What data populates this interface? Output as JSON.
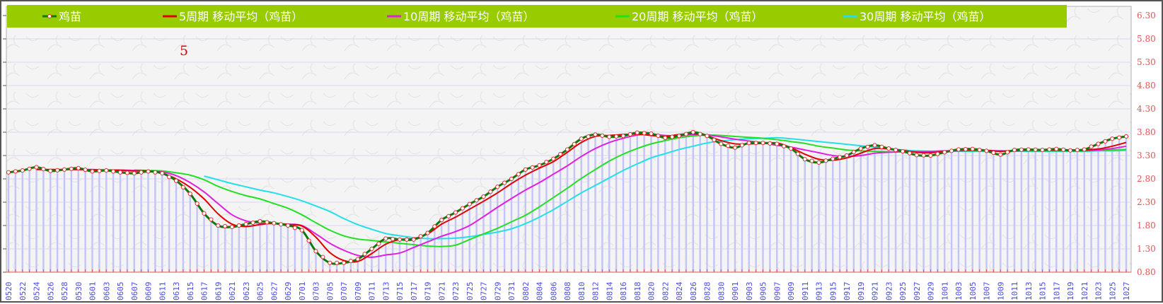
{
  "chart_data": {
    "type": "line",
    "title": "",
    "annotation": "5",
    "xlabel": "",
    "ylabel": "",
    "ylim": [
      0.8,
      6.3
    ],
    "y_ticks": [
      "6.30",
      "5.80",
      "5.30",
      "4.80",
      "4.30",
      "3.80",
      "3.30",
      "2.80",
      "2.30",
      "1.80",
      "1.30",
      "0.80"
    ],
    "y_axis_side": "right",
    "grid": true,
    "legend_position": "top",
    "x": [
      "0520",
      "0522",
      "0524",
      "0526",
      "0528",
      "0530",
      "0601",
      "0603",
      "0605",
      "0607",
      "0609",
      "0611",
      "0613",
      "0615",
      "0617",
      "0619",
      "0621",
      "0623",
      "0625",
      "0627",
      "0629",
      "0701",
      "0703",
      "0705",
      "0707",
      "0709",
      "0711",
      "0713",
      "0715",
      "0717",
      "0719",
      "0721",
      "0723",
      "0725",
      "0727",
      "0729",
      "0731",
      "0802",
      "0804",
      "0806",
      "0808",
      "0810",
      "0812",
      "0814",
      "0816",
      "0818",
      "0820",
      "0822",
      "0824",
      "0826",
      "0828",
      "0830",
      "0901",
      "0903",
      "0905",
      "0907",
      "0909",
      "0911",
      "0913",
      "0915",
      "0917",
      "0919",
      "0921",
      "0923",
      "0925",
      "0927",
      "0929",
      "1001",
      "1003",
      "1005",
      "1007",
      "1009",
      "1011",
      "1013",
      "1015",
      "1017",
      "1019",
      "1021",
      "1023",
      "1025",
      "1027"
    ],
    "series": [
      {
        "name": "鸡苗",
        "color": "#0a7a0a",
        "marker_color": "#e03030",
        "values": [
          2.94,
          2.98,
          3.05,
          2.97,
          3.0,
          3.03,
          2.96,
          2.98,
          2.94,
          2.92,
          2.96,
          2.92,
          2.76,
          2.48,
          2.06,
          1.8,
          1.77,
          1.83,
          1.89,
          1.85,
          1.8,
          1.7,
          1.25,
          1.0,
          1.0,
          1.08,
          1.3,
          1.52,
          1.5,
          1.5,
          1.64,
          1.92,
          2.08,
          2.26,
          2.42,
          2.63,
          2.8,
          3.0,
          3.09,
          3.23,
          3.43,
          3.66,
          3.75,
          3.7,
          3.72,
          3.79,
          3.77,
          3.68,
          3.72,
          3.8,
          3.72,
          3.55,
          3.47,
          3.57,
          3.57,
          3.55,
          3.45,
          3.22,
          3.15,
          3.23,
          3.3,
          3.45,
          3.52,
          3.45,
          3.39,
          3.31,
          3.3,
          3.37,
          3.43,
          3.44,
          3.4,
          3.32,
          3.42,
          3.43,
          3.42,
          3.44,
          3.41,
          3.43,
          3.55,
          3.66,
          3.71
        ]
      },
      {
        "name": "5周期 移动平均（鸡苗）",
        "color": "#e00000",
        "values": [
          null,
          null,
          3.0,
          3.0,
          3.0,
          3.0,
          2.99,
          2.99,
          2.98,
          2.97,
          2.97,
          2.92,
          2.8,
          2.62,
          2.37,
          2.05,
          1.83,
          1.78,
          1.82,
          1.85,
          1.82,
          1.79,
          1.55,
          1.22,
          1.05,
          1.03,
          1.2,
          1.4,
          1.5,
          1.52,
          1.62,
          1.83,
          1.98,
          2.15,
          2.32,
          2.5,
          2.7,
          2.88,
          3.03,
          3.17,
          3.37,
          3.58,
          3.71,
          3.73,
          3.75,
          3.76,
          3.73,
          3.71,
          3.75,
          3.77,
          3.72,
          3.62,
          3.55,
          3.55,
          3.56,
          3.57,
          3.47,
          3.33,
          3.22,
          3.2,
          3.25,
          3.35,
          3.45,
          3.44,
          3.41,
          3.37,
          3.36,
          3.39,
          3.42,
          3.42,
          3.41,
          3.39,
          3.41,
          3.42,
          3.42,
          3.42,
          3.42,
          3.42,
          3.44,
          3.5,
          3.58
        ]
      },
      {
        "name": "10周期 移动平均（鸡苗）",
        "color": "#e020e0",
        "values": [
          null,
          null,
          null,
          null,
          3.0,
          3.0,
          3.0,
          2.99,
          2.99,
          2.98,
          2.97,
          2.95,
          2.87,
          2.72,
          2.52,
          2.27,
          2.03,
          1.9,
          1.85,
          1.84,
          1.83,
          1.8,
          1.62,
          1.42,
          1.27,
          1.16,
          1.12,
          1.17,
          1.21,
          1.33,
          1.45,
          1.57,
          1.67,
          1.8,
          1.99,
          2.19,
          2.38,
          2.56,
          2.72,
          2.9,
          3.08,
          3.28,
          3.45,
          3.58,
          3.67,
          3.74,
          3.76,
          3.73,
          3.72,
          3.75,
          3.74,
          3.7,
          3.65,
          3.61,
          3.57,
          3.52,
          3.48,
          3.42,
          3.36,
          3.3,
          3.28,
          3.3,
          3.35,
          3.37,
          3.38,
          3.38,
          3.39,
          3.4,
          3.4,
          3.41,
          3.41,
          3.4,
          3.4,
          3.41,
          3.41,
          3.41,
          3.41,
          3.41,
          3.42,
          3.45,
          3.5
        ]
      },
      {
        "name": "20周期 移动平均（鸡苗）",
        "color": "#22e022",
        "values": [
          null,
          null,
          null,
          null,
          null,
          null,
          null,
          null,
          null,
          2.99,
          2.98,
          2.97,
          2.93,
          2.88,
          2.78,
          2.64,
          2.53,
          2.44,
          2.37,
          2.27,
          2.17,
          2.03,
          1.86,
          1.7,
          1.58,
          1.51,
          1.48,
          1.45,
          1.42,
          1.39,
          1.36,
          1.35,
          1.38,
          1.5,
          1.62,
          1.74,
          1.88,
          2.02,
          2.2,
          2.4,
          2.6,
          2.81,
          3.0,
          3.18,
          3.33,
          3.45,
          3.55,
          3.62,
          3.68,
          3.72,
          3.74,
          3.73,
          3.71,
          3.69,
          3.67,
          3.64,
          3.6,
          3.56,
          3.5,
          3.46,
          3.42,
          3.4,
          3.39,
          3.38,
          3.38,
          3.38,
          3.39,
          3.39,
          3.4,
          3.4,
          3.4,
          3.4,
          3.4,
          3.4,
          3.4,
          3.4,
          3.4,
          3.4,
          3.41,
          3.42,
          3.43
        ]
      },
      {
        "name": "30周期 移动平均（鸡苗）",
        "color": "#22e0e8",
        "values": [
          null,
          null,
          null,
          null,
          null,
          null,
          null,
          null,
          null,
          null,
          null,
          null,
          null,
          null,
          2.86,
          2.78,
          2.7,
          2.63,
          2.56,
          2.5,
          2.42,
          2.33,
          2.22,
          2.1,
          1.95,
          1.82,
          1.72,
          1.63,
          1.58,
          1.54,
          1.52,
          1.52,
          1.53,
          1.56,
          1.61,
          1.66,
          1.73,
          1.84,
          1.98,
          2.14,
          2.32,
          2.5,
          2.66,
          2.82,
          2.98,
          3.12,
          3.25,
          3.34,
          3.43,
          3.5,
          3.57,
          3.61,
          3.64,
          3.66,
          3.67,
          3.68,
          3.66,
          3.63,
          3.6,
          3.57,
          3.54,
          3.51,
          3.48,
          3.45,
          3.42,
          3.4,
          3.39,
          3.39,
          3.39,
          3.39,
          3.39,
          3.39,
          3.39,
          3.39,
          3.39,
          3.39,
          3.39,
          3.39,
          3.4,
          3.4,
          3.41
        ]
      }
    ]
  },
  "colors": {
    "legend_bg": "#99cc00",
    "bar": "#c4c4f6",
    "grid": "#d6d6f4",
    "axis_tick": "#e05555",
    "x_label": "#4a4ae0"
  }
}
